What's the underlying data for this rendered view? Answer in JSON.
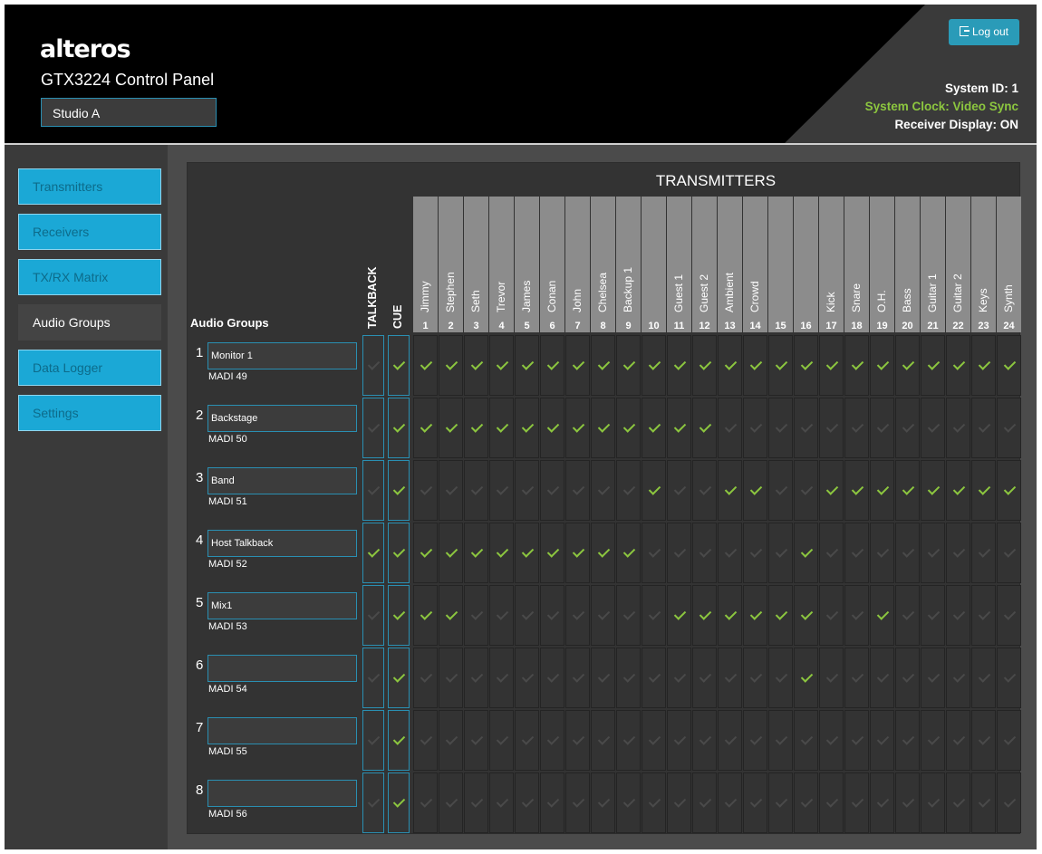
{
  "header": {
    "logo": "alteros",
    "title": "GTX3224 Control Panel",
    "studio": "Studio A",
    "logout_label": "Log out",
    "system_id": "System ID: 1",
    "system_clock": "System Clock: Video Sync",
    "receiver_display": "Receiver Display: ON"
  },
  "sidebar": {
    "items": [
      {
        "label": "Transmitters",
        "state": "active"
      },
      {
        "label": "Receivers",
        "state": "active"
      },
      {
        "label": "TX/RX Matrix",
        "state": "active"
      },
      {
        "label": "Audio Groups",
        "state": "current"
      },
      {
        "label": "Data Logger",
        "state": "active"
      },
      {
        "label": "Settings",
        "state": "active"
      }
    ]
  },
  "matrix": {
    "title": "TRANSMITTERS",
    "audio_groups_label": "Audio Groups",
    "talkback_label": "TALKBACK",
    "cue_label": "CUE",
    "transmitters": [
      {
        "num": "1",
        "name": "Jimmy"
      },
      {
        "num": "2",
        "name": "Stephen"
      },
      {
        "num": "3",
        "name": "Seth"
      },
      {
        "num": "4",
        "name": "Trevor"
      },
      {
        "num": "5",
        "name": "James"
      },
      {
        "num": "6",
        "name": "Conan"
      },
      {
        "num": "7",
        "name": "John"
      },
      {
        "num": "8",
        "name": "Chelsea"
      },
      {
        "num": "9",
        "name": "Backup 1"
      },
      {
        "num": "10",
        "name": ""
      },
      {
        "num": "11",
        "name": "Guest 1"
      },
      {
        "num": "12",
        "name": "Guest 2"
      },
      {
        "num": "13",
        "name": "Ambient"
      },
      {
        "num": "14",
        "name": "Crowd"
      },
      {
        "num": "15",
        "name": ""
      },
      {
        "num": "16",
        "name": ""
      },
      {
        "num": "17",
        "name": "Kick"
      },
      {
        "num": "18",
        "name": "Snare"
      },
      {
        "num": "19",
        "name": "O.H."
      },
      {
        "num": "20",
        "name": "Bass"
      },
      {
        "num": "21",
        "name": "Guitar 1"
      },
      {
        "num": "22",
        "name": "Guitar 2"
      },
      {
        "num": "23",
        "name": "Keys"
      },
      {
        "num": "24",
        "name": "Synth"
      }
    ],
    "groups": [
      {
        "num": "1",
        "name": "Monitor 1",
        "madi": "MADI 49",
        "talkback": false,
        "cue": true,
        "tx": [
          1,
          1,
          1,
          1,
          1,
          1,
          1,
          1,
          1,
          1,
          1,
          1,
          1,
          1,
          1,
          1,
          1,
          1,
          1,
          1,
          1,
          1,
          1,
          1
        ]
      },
      {
        "num": "2",
        "name": "Backstage",
        "madi": "MADI 50",
        "talkback": false,
        "cue": true,
        "tx": [
          1,
          1,
          1,
          1,
          1,
          1,
          1,
          1,
          1,
          1,
          1,
          1,
          0,
          0,
          0,
          0,
          0,
          0,
          0,
          0,
          0,
          0,
          0,
          0
        ]
      },
      {
        "num": "3",
        "name": "Band",
        "madi": "MADI 51",
        "talkback": false,
        "cue": true,
        "tx": [
          0,
          0,
          0,
          0,
          0,
          0,
          0,
          0,
          0,
          1,
          0,
          0,
          1,
          1,
          0,
          0,
          1,
          1,
          1,
          1,
          1,
          1,
          1,
          1
        ]
      },
      {
        "num": "4",
        "name": "Host Talkback",
        "madi": "MADI 52",
        "talkback": true,
        "cue": true,
        "tx": [
          1,
          1,
          1,
          1,
          1,
          1,
          1,
          1,
          1,
          0,
          0,
          0,
          0,
          0,
          0,
          1,
          0,
          0,
          0,
          0,
          0,
          0,
          0,
          0
        ]
      },
      {
        "num": "5",
        "name": "Mix1",
        "madi": "MADI 53",
        "talkback": false,
        "cue": true,
        "tx": [
          1,
          1,
          0,
          0,
          0,
          0,
          0,
          0,
          0,
          0,
          1,
          1,
          1,
          1,
          1,
          1,
          0,
          0,
          1,
          0,
          0,
          0,
          0,
          0
        ]
      },
      {
        "num": "6",
        "name": "",
        "madi": "MADI 54",
        "talkback": false,
        "cue": true,
        "tx": [
          0,
          0,
          0,
          0,
          0,
          0,
          0,
          0,
          0,
          0,
          0,
          0,
          0,
          0,
          0,
          1,
          0,
          0,
          0,
          0,
          0,
          0,
          0,
          0
        ]
      },
      {
        "num": "7",
        "name": "",
        "madi": "MADI 55",
        "talkback": false,
        "cue": true,
        "tx": [
          0,
          0,
          0,
          0,
          0,
          0,
          0,
          0,
          0,
          0,
          0,
          0,
          0,
          0,
          0,
          0,
          0,
          0,
          0,
          0,
          0,
          0,
          0,
          0
        ]
      },
      {
        "num": "8",
        "name": "",
        "madi": "MADI 56",
        "talkback": false,
        "cue": true,
        "tx": [
          0,
          0,
          0,
          0,
          0,
          0,
          0,
          0,
          0,
          0,
          0,
          0,
          0,
          0,
          0,
          0,
          0,
          0,
          0,
          0,
          0,
          0,
          0,
          0
        ]
      }
    ]
  },
  "colors": {
    "accent": "#1ba8d6",
    "check_on": "#8cc63f",
    "check_off": "#4a4a4a",
    "status_green": "#8cc63f"
  }
}
